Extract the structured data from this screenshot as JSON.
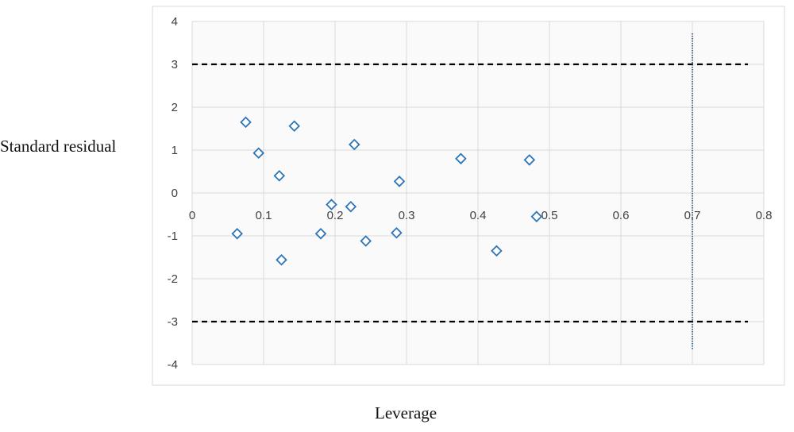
{
  "chart_data": {
    "type": "scatter",
    "xlabel": "Leverage",
    "ylabel": "Standard residual",
    "xlim": [
      0,
      0.8
    ],
    "ylim": [
      -4,
      4
    ],
    "x_ticks": [
      "0",
      "0.1",
      "0.2",
      "0.3",
      "0.4",
      "0.5",
      "0.6",
      "0.7",
      "0.8"
    ],
    "y_ticks": [
      "4",
      "3",
      "2",
      "1",
      "0",
      "-1",
      "-2",
      "-3",
      "-4"
    ],
    "grid": true,
    "marker": "hollow-diamond",
    "marker_color": "#2e75b6",
    "points": [
      {
        "x": 0.075,
        "y": 1.65
      },
      {
        "x": 0.143,
        "y": 1.56
      },
      {
        "x": 0.227,
        "y": 1.13
      },
      {
        "x": 0.093,
        "y": 0.93
      },
      {
        "x": 0.122,
        "y": 0.4
      },
      {
        "x": 0.29,
        "y": 0.27
      },
      {
        "x": 0.376,
        "y": 0.8
      },
      {
        "x": 0.472,
        "y": 0.77
      },
      {
        "x": 0.195,
        "y": -0.27
      },
      {
        "x": 0.222,
        "y": -0.32
      },
      {
        "x": 0.482,
        "y": -0.55
      },
      {
        "x": 0.063,
        "y": -0.95
      },
      {
        "x": 0.18,
        "y": -0.95
      },
      {
        "x": 0.286,
        "y": -0.93
      },
      {
        "x": 0.243,
        "y": -1.12
      },
      {
        "x": 0.426,
        "y": -1.35
      },
      {
        "x": 0.125,
        "y": -1.56
      }
    ],
    "reference_lines": [
      {
        "orientation": "horizontal",
        "value": 3,
        "style": "dashed",
        "color": "#000000"
      },
      {
        "orientation": "horizontal",
        "value": -3,
        "style": "dashed",
        "color": "#000000"
      },
      {
        "orientation": "vertical",
        "value": 0.7,
        "style": "dotted",
        "color": "#1f4e79"
      }
    ]
  }
}
